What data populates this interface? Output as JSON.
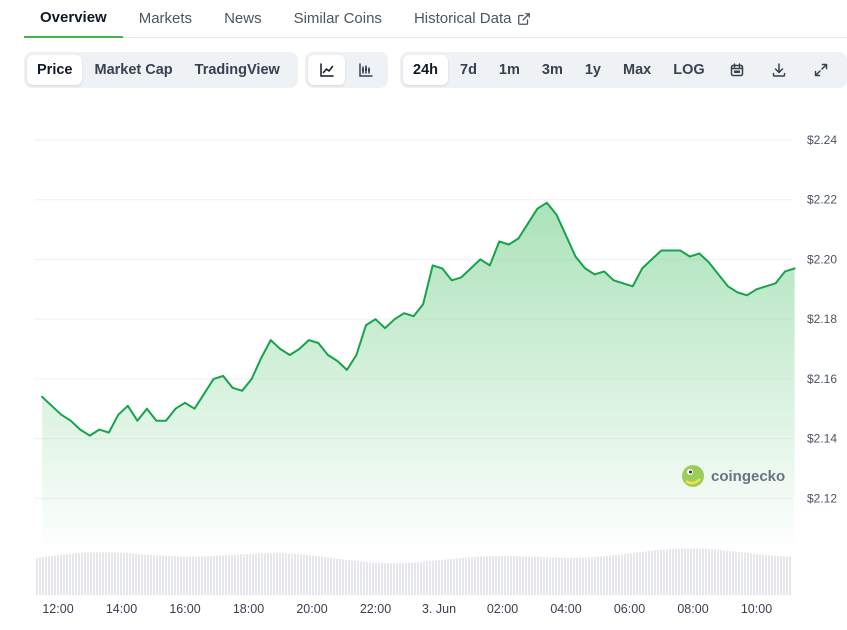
{
  "tabs": [
    {
      "label": "Overview",
      "active": true
    },
    {
      "label": "Markets",
      "active": false
    },
    {
      "label": "News",
      "active": false
    },
    {
      "label": "Similar Coins",
      "active": false
    },
    {
      "label": "Historical Data",
      "active": false,
      "icon": "external-link-icon"
    }
  ],
  "toolbar": {
    "type_buttons": [
      "Price",
      "Market Cap",
      "TradingView"
    ],
    "active_type": "Price",
    "chart_buttons": [
      {
        "icon": "line-chart-icon",
        "active": true
      },
      {
        "icon": "candlestick-chart-icon",
        "active": false
      }
    ],
    "range_buttons": [
      "24h",
      "7d",
      "1m",
      "3m",
      "1y",
      "Max",
      "LOG"
    ],
    "active_range": "24h",
    "icon_buttons": [
      "calendar-icon",
      "download-icon",
      "expand-icon"
    ]
  },
  "watermark": {
    "text": "coingecko",
    "icon": "coingecko-logo-icon"
  },
  "colors": {
    "line": "#16a34a",
    "fill_top": "#8fd9a2",
    "volume": "#e5e7eb",
    "accent": "#4cb14c"
  },
  "chart_data": {
    "type": "area",
    "title": "",
    "xlabel": "",
    "ylabel": "",
    "ylim": [
      2.105,
      2.245
    ],
    "yticks": [
      "$2.24",
      "$2.22",
      "$2.20",
      "$2.18",
      "$2.16",
      "$2.14",
      "$2.12"
    ],
    "ytick_values": [
      2.24,
      2.22,
      2.2,
      2.18,
      2.16,
      2.14,
      2.12
    ],
    "xticks": [
      "12:00",
      "14:00",
      "16:00",
      "18:00",
      "20:00",
      "22:00",
      "3. Jun",
      "02:00",
      "04:00",
      "06:00",
      "08:00",
      "10:00"
    ],
    "xtick_hours": [
      12,
      14,
      16,
      18,
      20,
      22,
      24,
      26,
      28,
      30,
      32,
      34
    ],
    "x_hours": [
      11.5,
      11.8,
      12.1,
      12.4,
      12.7,
      13.0,
      13.3,
      13.6,
      13.9,
      14.2,
      14.5,
      14.8,
      15.1,
      15.4,
      15.7,
      16.0,
      16.3,
      16.6,
      16.9,
      17.2,
      17.5,
      17.8,
      18.1,
      18.4,
      18.7,
      19.0,
      19.3,
      19.6,
      19.9,
      20.2,
      20.5,
      20.8,
      21.1,
      21.4,
      21.7,
      22.0,
      22.3,
      22.6,
      22.9,
      23.2,
      23.5,
      23.8,
      24.1,
      24.4,
      24.7,
      25.0,
      25.3,
      25.6,
      25.9,
      26.2,
      26.5,
      26.8,
      27.1,
      27.4,
      27.7,
      28.0,
      28.3,
      28.6,
      28.9,
      29.2,
      29.5,
      29.8,
      30.1,
      30.4,
      30.7,
      31.0,
      31.3,
      31.6,
      31.9,
      32.2,
      32.5,
      32.8,
      33.1,
      33.4,
      33.7,
      34.0,
      34.3,
      34.6,
      34.9,
      35.2
    ],
    "price": [
      2.154,
      2.151,
      2.148,
      2.146,
      2.143,
      2.141,
      2.143,
      2.142,
      2.148,
      2.151,
      2.146,
      2.15,
      2.146,
      2.146,
      2.15,
      2.152,
      2.15,
      2.155,
      2.16,
      2.161,
      2.157,
      2.156,
      2.16,
      2.167,
      2.173,
      2.17,
      2.168,
      2.17,
      2.173,
      2.172,
      2.168,
      2.166,
      2.163,
      2.168,
      2.178,
      2.18,
      2.177,
      2.18,
      2.182,
      2.181,
      2.185,
      2.198,
      2.197,
      2.193,
      2.194,
      2.197,
      2.2,
      2.198,
      2.206,
      2.205,
      2.207,
      2.212,
      2.217,
      2.219,
      2.215,
      2.208,
      2.201,
      2.197,
      2.195,
      2.196,
      2.193,
      2.192,
      2.191,
      2.197,
      2.2,
      2.203,
      2.203,
      2.203,
      2.201,
      2.202,
      2.199,
      2.195,
      2.191,
      2.189,
      2.188,
      2.19,
      2.191,
      2.192,
      2.196,
      2.197
    ]
  }
}
